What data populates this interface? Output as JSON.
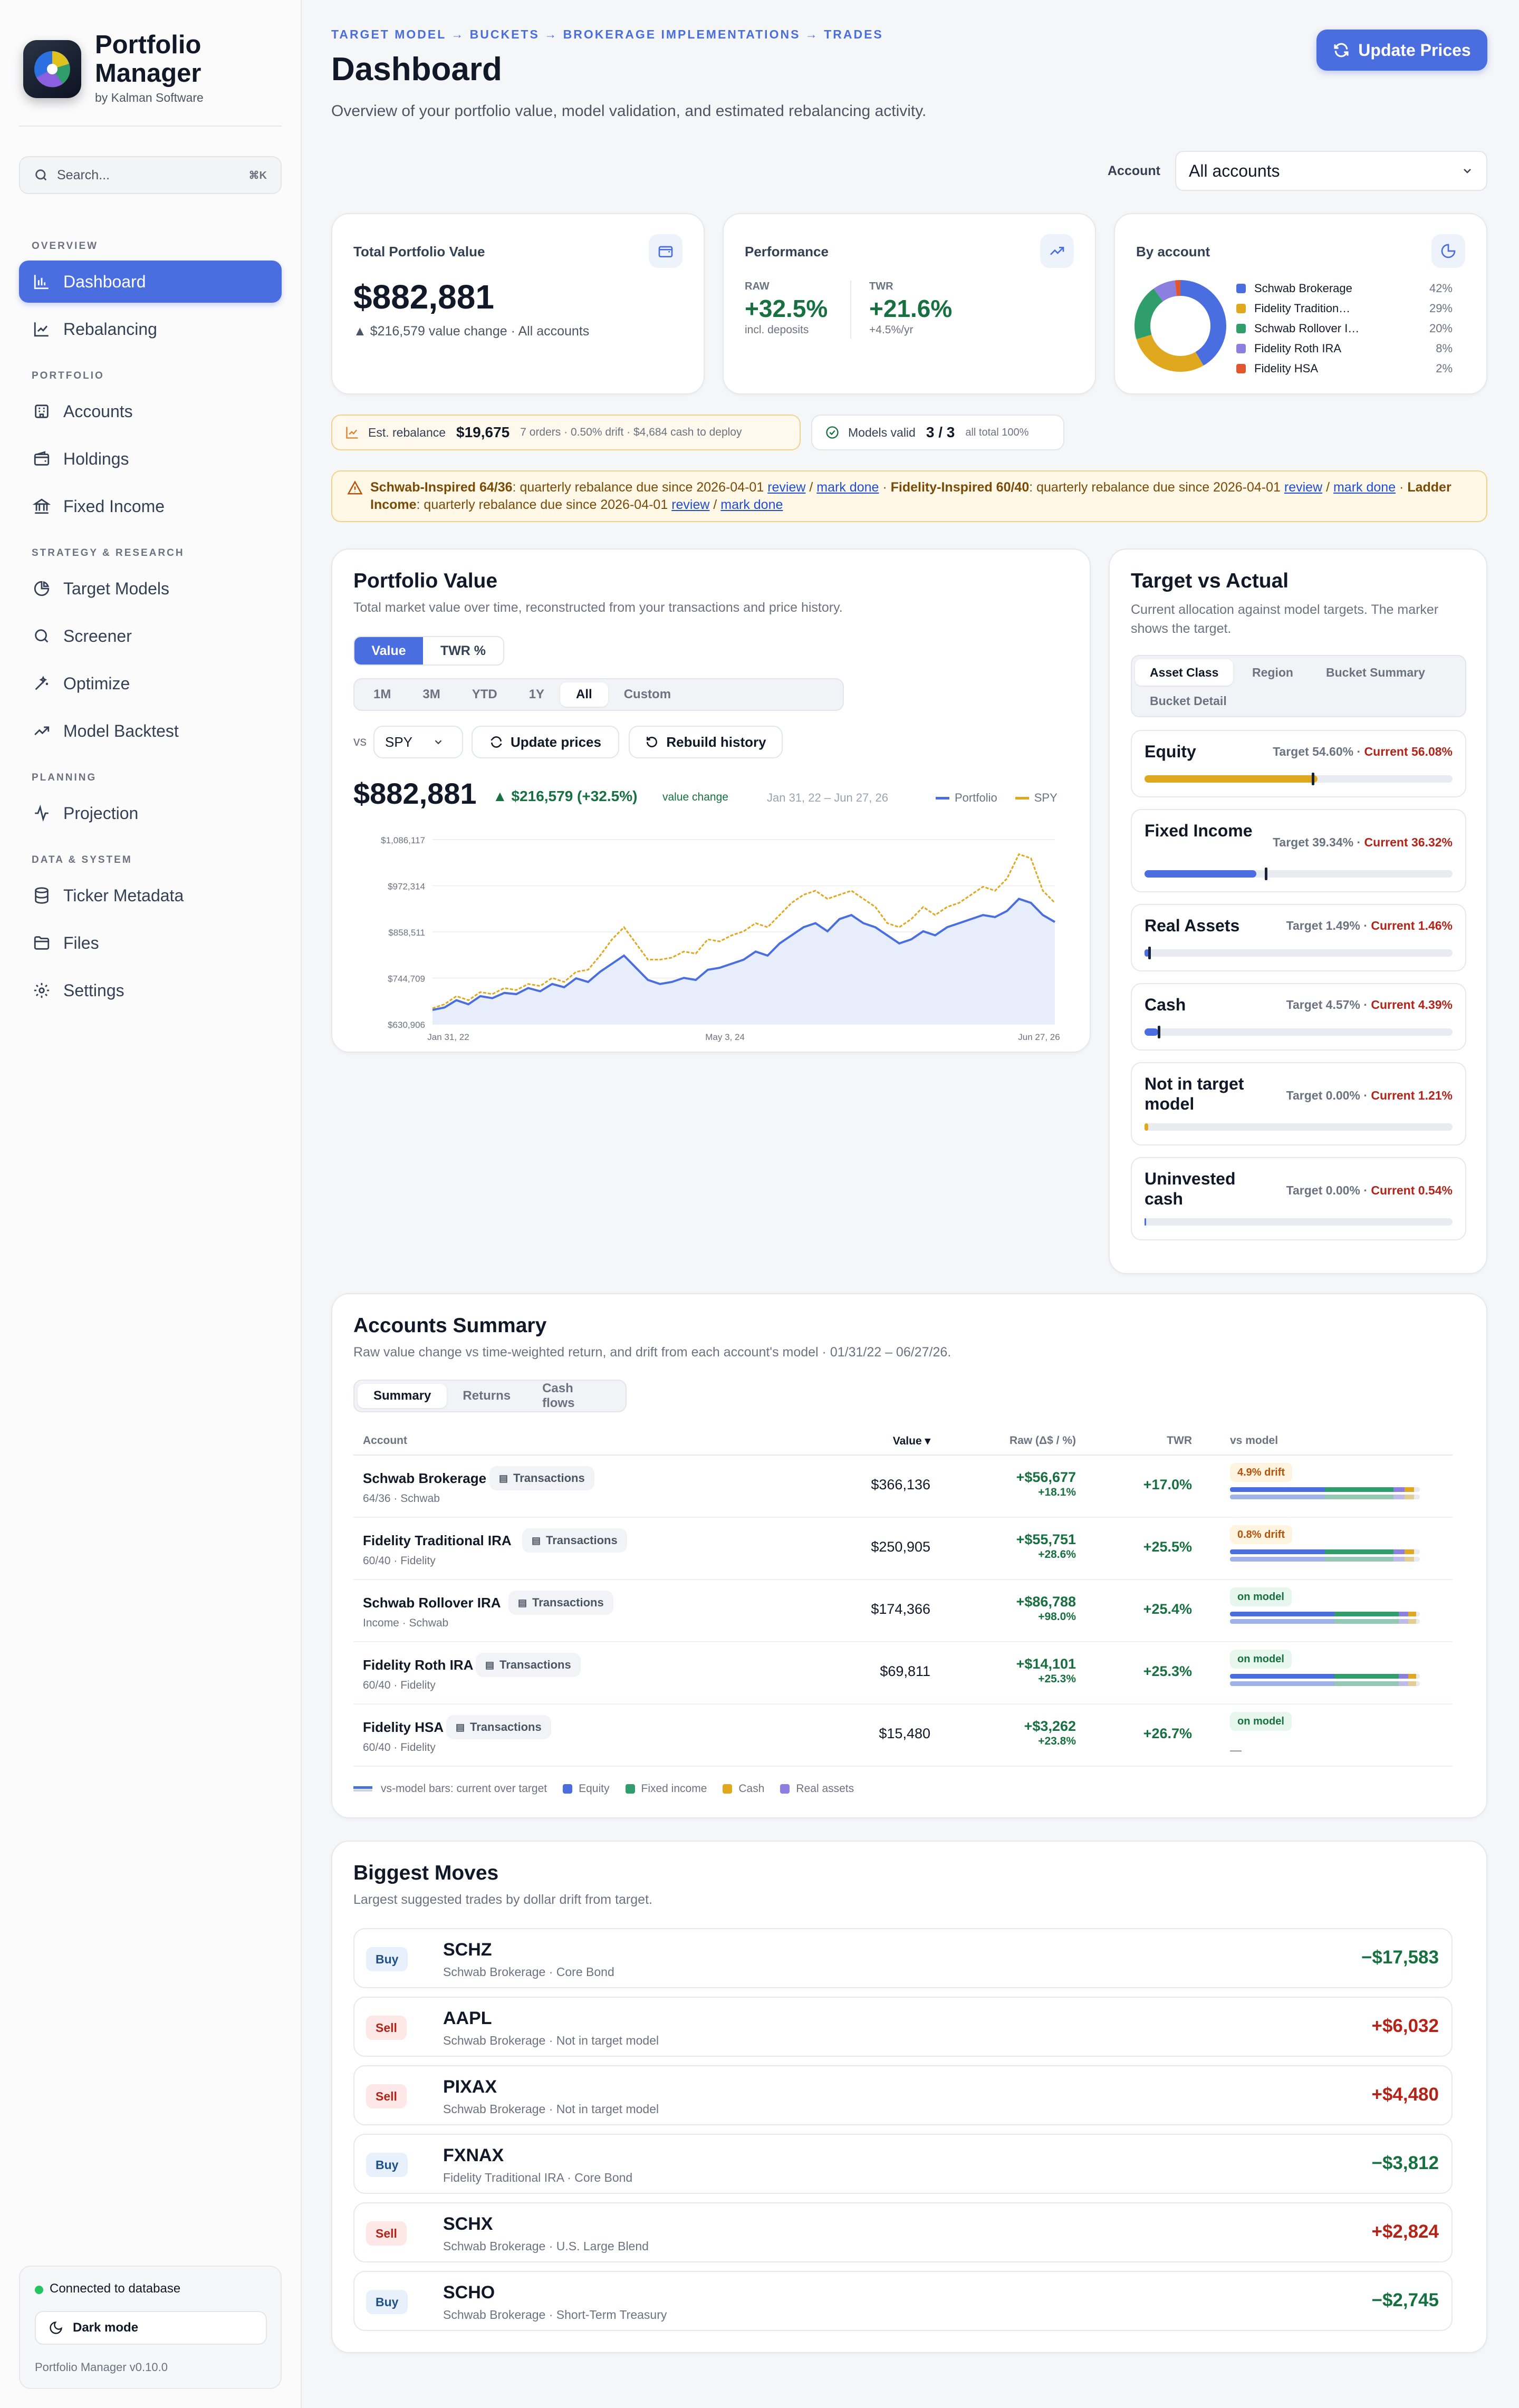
{
  "app": {
    "name": "Portfolio Manager",
    "by": "by Kalman Software",
    "version": "Portfolio Manager v0.10.0",
    "db_status": "Connected to database",
    "dark_mode": "Dark mode"
  },
  "search": {
    "placeholder": "Search...",
    "shortcut": "⌘K"
  },
  "sidebar": {
    "sections": [
      "OVERVIEW",
      "PORTFOLIO",
      "STRATEGY & RESEARCH",
      "PLANNING",
      "DATA & SYSTEM"
    ],
    "items": [
      {
        "label": "Dashboard",
        "icon": "bar-chart-icon",
        "active": true
      },
      {
        "label": "Rebalancing",
        "icon": "line-chart-icon"
      },
      {
        "label": "Accounts",
        "icon": "bank-icon"
      },
      {
        "label": "Holdings",
        "icon": "wallet-icon"
      },
      {
        "label": "Fixed Income",
        "icon": "landmark-icon"
      },
      {
        "label": "Target Models",
        "icon": "pie-icon"
      },
      {
        "label": "Screener",
        "icon": "search-icon"
      },
      {
        "label": "Optimize",
        "icon": "wand-icon"
      },
      {
        "label": "Model Backtest",
        "icon": "trend-icon"
      },
      {
        "label": "Projection",
        "icon": "pulse-icon"
      },
      {
        "label": "Ticker Metadata",
        "icon": "database-icon"
      },
      {
        "label": "Files",
        "icon": "folder-icon"
      },
      {
        "label": "Settings",
        "icon": "gear-icon"
      }
    ]
  },
  "header": {
    "breadcrumb": "TARGET MODEL → BUCKETS → BROKERAGE IMPLEMENTATIONS → TRADES",
    "title": "Dashboard",
    "subtitle": "Overview of your portfolio value, model validation, and estimated rebalancing activity.",
    "update_button": "Update Prices",
    "account_label": "Account",
    "account_value": "All accounts"
  },
  "kpi": {
    "total": {
      "label": "Total Portfolio Value",
      "value": "$882,881",
      "change": "▲ $216,579 value change · All accounts"
    },
    "performance": {
      "label": "Performance",
      "raw_label": "RAW",
      "raw_value": "+32.5%",
      "raw_note": "incl. deposits",
      "twr_label": "TWR",
      "twr_value": "+21.6%",
      "twr_note": "+4.5%/yr"
    },
    "by_account": {
      "label": "By account",
      "items": [
        {
          "name": "Schwab Brokerage",
          "pct": "42%",
          "value": 42,
          "color": "#4a6ee0"
        },
        {
          "name": "Fidelity Tradition…",
          "pct": "29%",
          "value": 29,
          "color": "#e0a81e"
        },
        {
          "name": "Schwab Rollover I…",
          "pct": "20%",
          "value": 20,
          "color": "#2f9e6b"
        },
        {
          "name": "Fidelity Roth IRA",
          "pct": "8%",
          "value": 8,
          "color": "#8b7fe0"
        },
        {
          "name": "Fidelity HSA",
          "pct": "2%",
          "value": 2,
          "color": "#e0572f"
        }
      ]
    }
  },
  "rebalance_pill": {
    "label": "Est. rebalance",
    "value": "$19,675",
    "detail": "7 orders · 0.50% drift · $4,684 cash to deploy"
  },
  "models_pill": {
    "label": "Models valid",
    "value": "3 / 3",
    "detail": "all total 100%"
  },
  "alert": {
    "m1": "Schwab-Inspired 64/36",
    "t1": ": quarterly rebalance due since 2026-04-01 ",
    "m2": "Fidelity-Inspired 60/40",
    "t2": ": quarterly rebalance due since 2026-04-01 ",
    "m3": "Ladder Income",
    "t3": ": quarterly rebalance due since 2026-04-01 ",
    "review": "review",
    "sep": " / ",
    "done": "mark done",
    "dot": " · "
  },
  "portfolio_value": {
    "title": "Portfolio Value",
    "subtitle": "Total market value over time, reconstructed from your transactions and price history.",
    "tabs": [
      "Value",
      "TWR %"
    ],
    "ranges": [
      "1M",
      "3M",
      "YTD",
      "1Y",
      "All",
      "Custom"
    ],
    "vs_label": "vs",
    "benchmark": "SPY",
    "update_prices": "Update prices",
    "rebuild": "Rebuild history",
    "value": "$882,881",
    "change": "▲ $216,579 (+32.5%)",
    "change_note": "value change",
    "date_range": "Jan 31, 22 – Jun 27, 26",
    "legend_portfolio": "Portfolio",
    "legend_spy": "SPY"
  },
  "chart_data": {
    "type": "line",
    "title": "",
    "x_ticks": [
      "Jan 31, 22",
      "May 3, 24",
      "Jun 27, 26"
    ],
    "y_ticks": [
      "$1,086,117",
      "$972,314",
      "$858,511",
      "$744,709",
      "$630,906"
    ],
    "ylim": [
      630906,
      1086117
    ],
    "series": [
      {
        "name": "Portfolio",
        "color": "#4a6ee0",
        "values": [
          666000,
          672000,
          690000,
          680000,
          700000,
          695000,
          708000,
          705000,
          720000,
          712000,
          730000,
          722000,
          744000,
          735000,
          760000,
          780000,
          800000,
          770000,
          740000,
          730000,
          735000,
          745000,
          740000,
          765000,
          770000,
          780000,
          790000,
          810000,
          800000,
          830000,
          850000,
          870000,
          880000,
          860000,
          890000,
          900000,
          880000,
          870000,
          850000,
          830000,
          840000,
          860000,
          850000,
          870000,
          880000,
          890000,
          900000,
          895000,
          910000,
          940000,
          930000,
          900000,
          882881
        ]
      },
      {
        "name": "SPY",
        "color": "#e0a81e",
        "values": [
          670000,
          680000,
          700000,
          690000,
          710000,
          705000,
          720000,
          715000,
          730000,
          725000,
          745000,
          735000,
          760000,
          765000,
          800000,
          840000,
          870000,
          830000,
          790000,
          790000,
          795000,
          810000,
          805000,
          840000,
          835000,
          850000,
          860000,
          880000,
          870000,
          900000,
          930000,
          950000,
          960000,
          940000,
          950000,
          960000,
          940000,
          920000,
          880000,
          870000,
          890000,
          920000,
          900000,
          920000,
          930000,
          950000,
          970000,
          960000,
          990000,
          1050000,
          1040000,
          960000,
          930000
        ]
      }
    ]
  },
  "target_vs_actual": {
    "title": "Target vs Actual",
    "subtitle": "Current allocation against model targets. The marker shows the target.",
    "tabs": [
      "Asset Class",
      "Region",
      "Bucket Summary",
      "Bucket Detail"
    ],
    "items": [
      {
        "name": "Equity",
        "target": "Target 54.60%",
        "current": "Current 56.08%",
        "cur": 56.08,
        "tgt": 54.6,
        "color": "#e0a81e"
      },
      {
        "name": "Fixed Income",
        "target": "Target 39.34%",
        "current": "Current 36.32%",
        "cur": 36.32,
        "tgt": 39.34,
        "color": "#4a6ee0"
      },
      {
        "name": "Real Assets",
        "target": "Target 1.49%",
        "current": "Current 1.46%",
        "cur": 1.46,
        "tgt": 1.49,
        "color": "#4a6ee0"
      },
      {
        "name": "Cash",
        "target": "Target 4.57%",
        "current": "Current 4.39%",
        "cur": 4.39,
        "tgt": 4.57,
        "color": "#4a6ee0"
      },
      {
        "name": "Not in target model",
        "target": "Target 0.00%",
        "current": "Current 1.21%",
        "cur": 1.21,
        "tgt": 0,
        "color": "#e0a81e"
      },
      {
        "name": "Uninvested cash",
        "target": "Target 0.00%",
        "current": "Current 0.54%",
        "cur": 0.54,
        "tgt": 0,
        "color": "#4a6ee0"
      }
    ]
  },
  "accounts": {
    "title": "Accounts Summary",
    "subtitle": "Raw value change vs time-weighted return, and drift from each account's model · 01/31/22 – 06/27/26.",
    "tabs": [
      "Summary",
      "Returns",
      "Cash flows"
    ],
    "columns": [
      "Account",
      "Value ▾",
      "Raw (Δ$ / %)",
      "TWR",
      "vs model"
    ],
    "tx_label": "Transactions",
    "rows": [
      {
        "name": "Schwab Brokerage",
        "sub": "64/36 · Schwab",
        "value": "$366,136",
        "raw": "+$56,677",
        "raw_pct": "+18.1%",
        "twr": "+17.0%",
        "drift": "4.9% drift",
        "drift_type": "warn"
      },
      {
        "name": "Fidelity Traditional IRA",
        "sub": "60/40 · Fidelity",
        "value": "$250,905",
        "raw": "+$55,751",
        "raw_pct": "+28.6%",
        "twr": "+25.5%",
        "drift": "0.8% drift",
        "drift_type": "warn"
      },
      {
        "name": "Schwab Rollover IRA",
        "sub": "Income · Schwab",
        "value": "$174,366",
        "raw": "+$86,788",
        "raw_pct": "+98.0%",
        "twr": "+25.4%",
        "drift": "on model",
        "drift_type": "ok"
      },
      {
        "name": "Fidelity Roth IRA",
        "sub": "60/40 · Fidelity",
        "value": "$69,811",
        "raw": "+$14,101",
        "raw_pct": "+25.3%",
        "twr": "+25.3%",
        "drift": "on model",
        "drift_type": "ok"
      },
      {
        "name": "Fidelity HSA",
        "sub": "60/40 · Fidelity",
        "value": "$15,480",
        "raw": "+$3,262",
        "raw_pct": "+23.8%",
        "twr": "+26.7%",
        "drift": "on model",
        "drift_type": "ok",
        "no_bar": true
      }
    ],
    "legend": [
      "vs-model bars: current over target",
      "Equity",
      "Fixed income",
      "Cash",
      "Real assets"
    ]
  },
  "moves": {
    "title": "Biggest Moves",
    "subtitle": "Largest suggested trades by dollar drift from target.",
    "items": [
      {
        "side": "Buy",
        "ticker": "SCHZ",
        "sub": "Schwab Brokerage · Core Bond",
        "amount": "−$17,583"
      },
      {
        "side": "Sell",
        "ticker": "AAPL",
        "sub": "Schwab Brokerage · Not in target model",
        "amount": "+$6,032"
      },
      {
        "side": "Sell",
        "ticker": "PIXAX",
        "sub": "Schwab Brokerage · Not in target model",
        "amount": "+$4,480"
      },
      {
        "side": "Buy",
        "ticker": "FXNAX",
        "sub": "Fidelity Traditional IRA · Core Bond",
        "amount": "−$3,812"
      },
      {
        "side": "Sell",
        "ticker": "SCHX",
        "sub": "Schwab Brokerage · U.S. Large Blend",
        "amount": "+$2,824"
      },
      {
        "side": "Buy",
        "ticker": "SCHO",
        "sub": "Schwab Brokerage · Short-Term Treasury",
        "amount": "−$2,745"
      }
    ]
  }
}
